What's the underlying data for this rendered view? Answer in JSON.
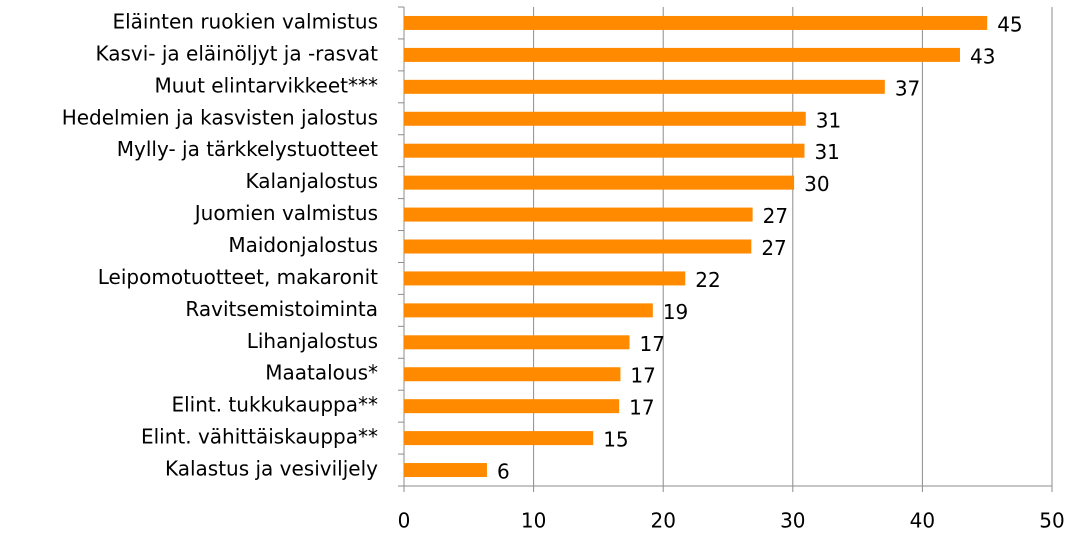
{
  "chart_data": {
    "type": "barh",
    "categories": [
      "Eläinten ruokien valmistus",
      "Kasvi- ja eläinöljyt ja -rasvat",
      "Muut elintarvikkeet***",
      "Hedelmien ja kasvisten jalostus",
      "Mylly- ja tärkkelystuotteet",
      "Kalanjalostus",
      "Juomien valmistus",
      "Maidonjalostus",
      "Leipomotuotteet, makaronit",
      "Ravitsemistoiminta",
      "Lihanjalostus",
      "Maatalous*",
      "Elint. tukkukauppa**",
      "Elint. vähittäiskauppa**",
      "Kalastus ja vesiviljely"
    ],
    "values": [
      45.0,
      42.9,
      37.1,
      31.0,
      30.9,
      30.1,
      26.9,
      26.8,
      21.7,
      19.2,
      17.4,
      16.7,
      16.6,
      14.6,
      6.4
    ],
    "value_labels": [
      "45",
      "43",
      "37",
      "31",
      "31",
      "30",
      "27",
      "27",
      "22",
      "19",
      "17",
      "17",
      "17",
      "15",
      "6"
    ],
    "color": "#ff8a00",
    "xlim": [
      0,
      50
    ],
    "xticks": [
      0,
      10,
      20,
      30,
      40,
      50
    ],
    "grid": true
  }
}
